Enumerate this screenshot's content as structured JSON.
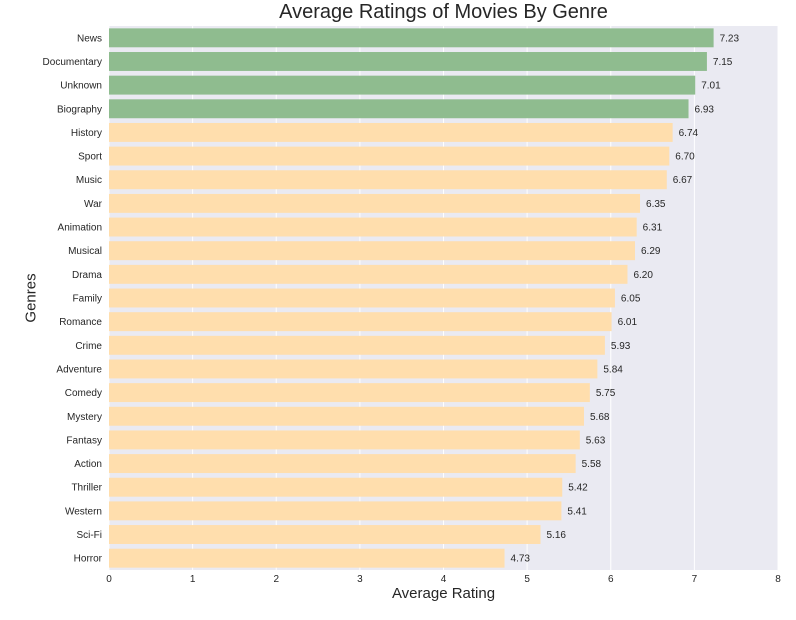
{
  "chart_data": {
    "type": "bar",
    "orientation": "horizontal",
    "title": "Average Ratings of Movies By Genre",
    "xlabel": "Average Rating",
    "ylabel": "Genres",
    "xlim": [
      0,
      8
    ],
    "xticks": [
      "0",
      "1",
      "2",
      "3",
      "4",
      "5",
      "6",
      "7",
      "8"
    ],
    "grid": true,
    "colors": {
      "highlight": "#8fbc8f",
      "default": "#ffdead",
      "background": "#eaeaf2"
    },
    "categories": [
      "News",
      "Documentary",
      "Unknown",
      "Biography",
      "History",
      "Sport",
      "Music",
      "War",
      "Animation",
      "Musical",
      "Drama",
      "Family",
      "Romance",
      "Crime",
      "Adventure",
      "Comedy",
      "Mystery",
      "Fantasy",
      "Action",
      "Thriller",
      "Western",
      "Sci-Fi",
      "Horror"
    ],
    "values": [
      7.23,
      7.15,
      7.01,
      6.93,
      6.74,
      6.7,
      6.67,
      6.35,
      6.31,
      6.29,
      6.2,
      6.05,
      6.01,
      5.93,
      5.84,
      5.75,
      5.68,
      5.63,
      5.58,
      5.42,
      5.41,
      5.16,
      4.73
    ],
    "value_labels": [
      "7.23",
      "7.15",
      "7.01",
      "6.93",
      "6.74",
      "6.70",
      "6.67",
      "6.35",
      "6.31",
      "6.29",
      "6.20",
      "6.05",
      "6.01",
      "5.93",
      "5.84",
      "5.75",
      "5.68",
      "5.63",
      "5.58",
      "5.42",
      "5.41",
      "5.16",
      "4.73"
    ],
    "highlighted_count": 4
  }
}
